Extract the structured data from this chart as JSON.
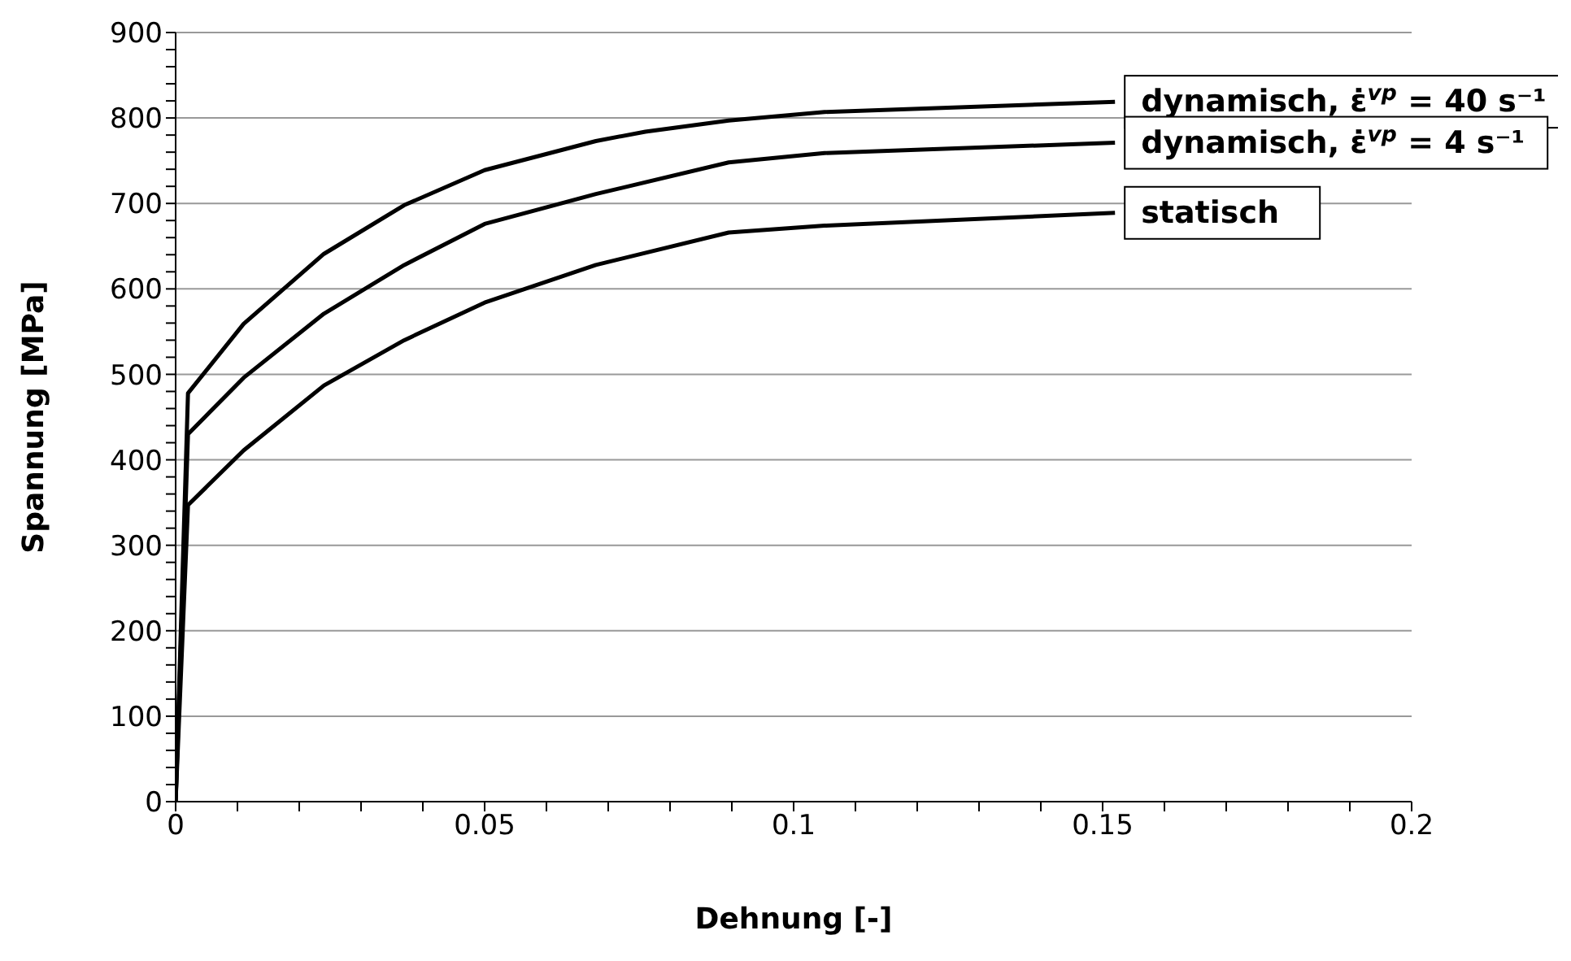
{
  "chart_data": {
    "type": "line",
    "xlabel": "Dehnung [-]",
    "ylabel": "Spannung [MPa]",
    "xlim": [
      0,
      0.2
    ],
    "xticks": [
      0,
      {
        "value": 0.01,
        "label": null
      },
      {
        "value": 0.02,
        "label": null
      },
      {
        "value": 0.03,
        "label": null
      },
      {
        "value": 0.04,
        "label": null
      },
      0.05,
      {
        "value": 0.06,
        "label": null
      },
      {
        "value": 0.07,
        "label": null
      },
      {
        "value": 0.08,
        "label": null
      },
      {
        "value": 0.09,
        "label": null
      },
      0.1,
      {
        "value": 0.11,
        "label": null
      },
      {
        "value": 0.12,
        "label": null
      },
      {
        "value": 0.13,
        "label": null
      },
      {
        "value": 0.14,
        "label": null
      },
      0.15,
      {
        "value": 0.16,
        "label": null
      },
      {
        "value": 0.17,
        "label": null
      },
      {
        "value": 0.18,
        "label": null
      },
      {
        "value": 0.19,
        "label": null
      },
      0.2
    ],
    "ylim": [
      0,
      900
    ],
    "yticks": [
      0,
      {
        "value": 20,
        "label": null
      },
      {
        "value": 40,
        "label": null
      },
      {
        "value": 60,
        "label": null
      },
      {
        "value": 80,
        "label": null
      },
      100,
      {
        "value": 120,
        "label": null
      },
      {
        "value": 140,
        "label": null
      },
      {
        "value": 160,
        "label": null
      },
      {
        "value": 180,
        "label": null
      },
      200,
      {
        "value": 220,
        "label": null
      },
      {
        "value": 240,
        "label": null
      },
      {
        "value": 260,
        "label": null
      },
      {
        "value": 280,
        "label": null
      },
      300,
      {
        "value": 320,
        "label": null
      },
      {
        "value": 340,
        "label": null
      },
      {
        "value": 360,
        "label": null
      },
      {
        "value": 380,
        "label": null
      },
      400,
      {
        "value": 420,
        "label": null
      },
      {
        "value": 440,
        "label": null
      },
      {
        "value": 460,
        "label": null
      },
      {
        "value": 480,
        "label": null
      },
      500,
      {
        "value": 520,
        "label": null
      },
      {
        "value": 540,
        "label": null
      },
      {
        "value": 560,
        "label": null
      },
      {
        "value": 580,
        "label": null
      },
      600,
      {
        "value": 620,
        "label": null
      },
      {
        "value": 640,
        "label": null
      },
      {
        "value": 660,
        "label": null
      },
      {
        "value": 680,
        "label": null
      },
      700,
      {
        "value": 720,
        "label": null
      },
      {
        "value": 740,
        "label": null
      },
      {
        "value": 760,
        "label": null
      },
      {
        "value": 780,
        "label": null
      },
      800,
      {
        "value": 820,
        "label": null
      },
      {
        "value": 840,
        "label": null
      },
      {
        "value": 860,
        "label": null
      },
      {
        "value": 880,
        "label": null
      },
      900
    ],
    "grid": "y",
    "legend": false,
    "marker": "none",
    "line_style": "solid",
    "series": [
      {
        "name": "dynamisch, ε̇$^{vp}$= 40 s⁻¹",
        "color": "#000000",
        "x": [
          0,
          0.002,
          0.011,
          0.024,
          0.037,
          0.05,
          0.068,
          0.076,
          0.0895,
          0.105,
          0.152
        ],
        "values": [
          0,
          478,
          559,
          641,
          698,
          739,
          773,
          784,
          797,
          807,
          819
        ]
      },
      {
        "name": "dynamisch, ε̇$^{vp}$= 4 s⁻¹",
        "color": "#000000",
        "x": [
          0,
          0.002,
          0.011,
          0.024,
          0.037,
          0.05,
          0.068,
          0.0895,
          0.105,
          0.152
        ],
        "values": [
          0,
          430,
          496,
          571,
          628,
          676,
          711,
          748,
          759,
          771
        ]
      },
      {
        "name": "statisch",
        "color": "#000000",
        "x": [
          0,
          0.002,
          0.011,
          0.024,
          0.037,
          0.05,
          0.068,
          0.0895,
          0.105,
          0.152
        ],
        "values": [
          0,
          347,
          411,
          487,
          540,
          584,
          628,
          666,
          674,
          689
        ]
      }
    ]
  }
}
